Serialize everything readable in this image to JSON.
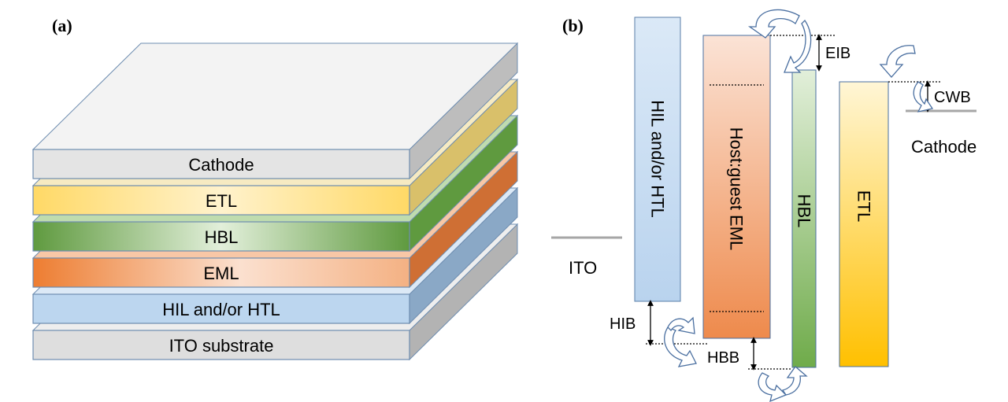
{
  "panel_a": {
    "label": "(a)",
    "layers": [
      {
        "name": "Cathode",
        "front": "#e4e4e4",
        "side": "#bdbdbd",
        "top": "#f3f3f3"
      },
      {
        "name": "ETL",
        "front": "#ffe691",
        "side": "#d9c06a",
        "top": "#f6eac2"
      },
      {
        "name": "HBL",
        "front": "#8fc373",
        "side": "#5f9a3f",
        "top": "#bfdcae"
      },
      {
        "name": "EML",
        "front": "#f29a62",
        "side": "#cf6f34",
        "top": "#f8c7a6"
      },
      {
        "name": "HIL and/or HTL",
        "front": "#bcd6ef",
        "side": "#8aa8c6",
        "top": "#dce9f6"
      },
      {
        "name": "ITO substrate",
        "front": "#dedede",
        "side": "#b3b3b3",
        "top": "#eeeeee"
      }
    ]
  },
  "panel_b": {
    "label": "(b)",
    "levels": {
      "ito": "ITO",
      "cathode": "Cathode"
    },
    "bands": [
      {
        "name": "HIL and/or HTL",
        "color_top": "#dbe9f7",
        "color_bottom": "#b9d3ee"
      },
      {
        "name": "Host:guest EML",
        "color_top": "#fbe3d6",
        "color_bottom": "#ee8a4c"
      },
      {
        "name": "HBL",
        "color_top": "#e2efda",
        "color_bottom": "#6fab4a"
      },
      {
        "name": "ETL",
        "color_top": "#fff6d6",
        "color_bottom": "#ffc000"
      }
    ],
    "barriers": {
      "hib": "HIB",
      "hbb": "HBB",
      "eib": "EIB",
      "cwb": "CWB"
    }
  }
}
